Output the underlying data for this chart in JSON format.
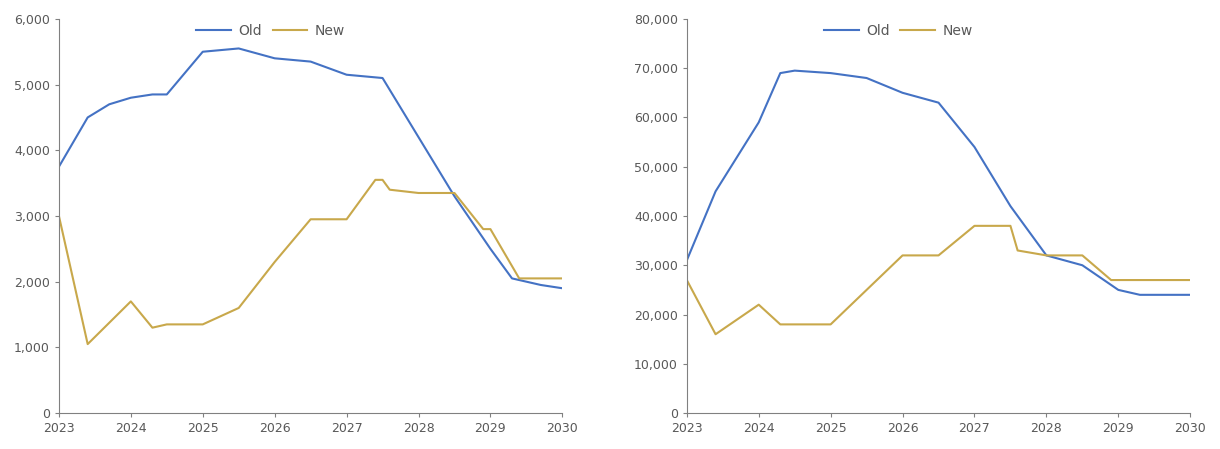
{
  "left_chart": {
    "old_x": [
      2023,
      2023.4,
      2023.7,
      2024,
      2024.3,
      2024.5,
      2025,
      2025.5,
      2026,
      2026.5,
      2027,
      2027.5,
      2028,
      2028.5,
      2029,
      2029.3,
      2029.7,
      2030
    ],
    "old_y": [
      3750,
      4500,
      4700,
      4800,
      4850,
      4850,
      5500,
      5550,
      5400,
      5350,
      5150,
      5100,
      4200,
      3300,
      2500,
      2050,
      1950,
      1900
    ],
    "new_x": [
      2023,
      2023.4,
      2024,
      2024.3,
      2024.5,
      2025,
      2025.5,
      2026,
      2026.5,
      2027,
      2027.4,
      2027.5,
      2027.6,
      2028,
      2028.5,
      2028.9,
      2029,
      2029.4,
      2029.5,
      2030
    ],
    "new_y": [
      3000,
      1050,
      1700,
      1300,
      1350,
      1350,
      1600,
      2300,
      2950,
      2950,
      3550,
      3550,
      3400,
      3350,
      3350,
      2800,
      2800,
      2050,
      2050,
      2050
    ],
    "ylim": [
      0,
      6000
    ],
    "yticks": [
      0,
      1000,
      2000,
      3000,
      4000,
      5000,
      6000
    ],
    "ytick_labels": [
      "0",
      "1,000",
      "2,000",
      "3,000",
      "4,000",
      "5,000",
      "6,000"
    ]
  },
  "right_chart": {
    "old_x": [
      2023,
      2023.4,
      2023.7,
      2024,
      2024.3,
      2024.5,
      2025,
      2025.5,
      2026,
      2026.5,
      2027,
      2027.5,
      2028,
      2028.5,
      2029,
      2029.3,
      2029.7,
      2030
    ],
    "old_y": [
      31000,
      45000,
      52000,
      59000,
      69000,
      69500,
      69000,
      68000,
      65000,
      63000,
      54000,
      42000,
      32000,
      30000,
      25000,
      24000,
      24000,
      24000
    ],
    "new_x": [
      2023,
      2023.4,
      2024,
      2024.3,
      2024.5,
      2025,
      2025.5,
      2026,
      2026.5,
      2027,
      2027.4,
      2027.5,
      2027.6,
      2028,
      2028.5,
      2028.9,
      2029,
      2029.4,
      2029.5,
      2030
    ],
    "new_y": [
      27000,
      16000,
      22000,
      18000,
      18000,
      18000,
      25000,
      32000,
      32000,
      38000,
      38000,
      38000,
      33000,
      32000,
      32000,
      27000,
      27000,
      27000,
      27000,
      27000
    ],
    "ylim": [
      0,
      80000
    ],
    "yticks": [
      0,
      10000,
      20000,
      30000,
      40000,
      50000,
      60000,
      70000,
      80000
    ],
    "ytick_labels": [
      "0",
      "10,000",
      "20,000",
      "30,000",
      "40,000",
      "50,000",
      "60,000",
      "70,000",
      "80,000"
    ]
  },
  "xticks": [
    2023,
    2024,
    2025,
    2026,
    2027,
    2028,
    2029,
    2030
  ],
  "old_color": "#4472C4",
  "new_color": "#C8A84B",
  "bg_color": "#FFFFFF",
  "legend_old": "Old",
  "legend_new": "New",
  "line_width": 1.5,
  "tick_fontsize": 9,
  "legend_fontsize": 10,
  "spine_color": "#808080",
  "tick_color": "#595959"
}
